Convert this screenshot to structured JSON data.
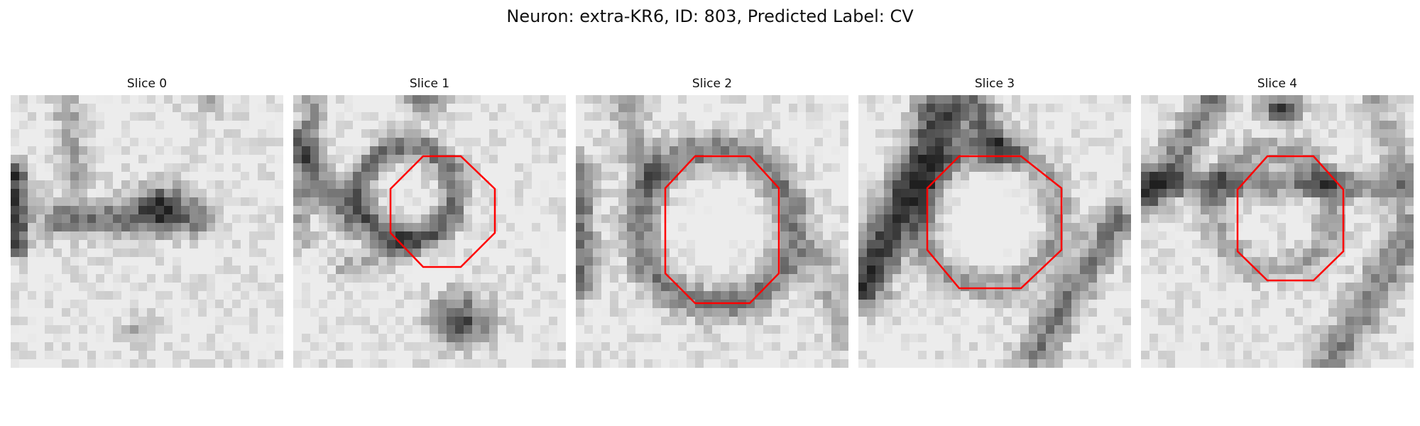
{
  "figure": {
    "title": "Neuron: extra-KR6, ID: 803, Predicted Label: CV",
    "panels": [
      {
        "title": "Slice 0",
        "has_outline": false,
        "dark_features": [
          "left-edge bar",
          "central horizontal band",
          "dark blob center-right"
        ],
        "outline_color": ""
      },
      {
        "title": "Slice 1",
        "has_outline": true,
        "dark_features": [
          "dark ring around octagon",
          "dark top-center spot",
          "dark blob bottom-right"
        ],
        "outline_color": "#ff0000"
      },
      {
        "title": "Slice 2",
        "has_outline": true,
        "dark_features": [
          "bright center inside ring",
          "dark left-edge band"
        ],
        "outline_color": "#ff0000"
      },
      {
        "title": "Slice 3",
        "has_outline": true,
        "dark_features": [
          "dark diagonal band left",
          "bright center",
          "dark band right"
        ],
        "outline_color": "#ff0000"
      },
      {
        "title": "Slice 4",
        "has_outline": true,
        "dark_features": [
          "dark top spot",
          "dark diagonal bands",
          "bright lower-left"
        ],
        "outline_color": "#ff0000"
      }
    ]
  }
}
